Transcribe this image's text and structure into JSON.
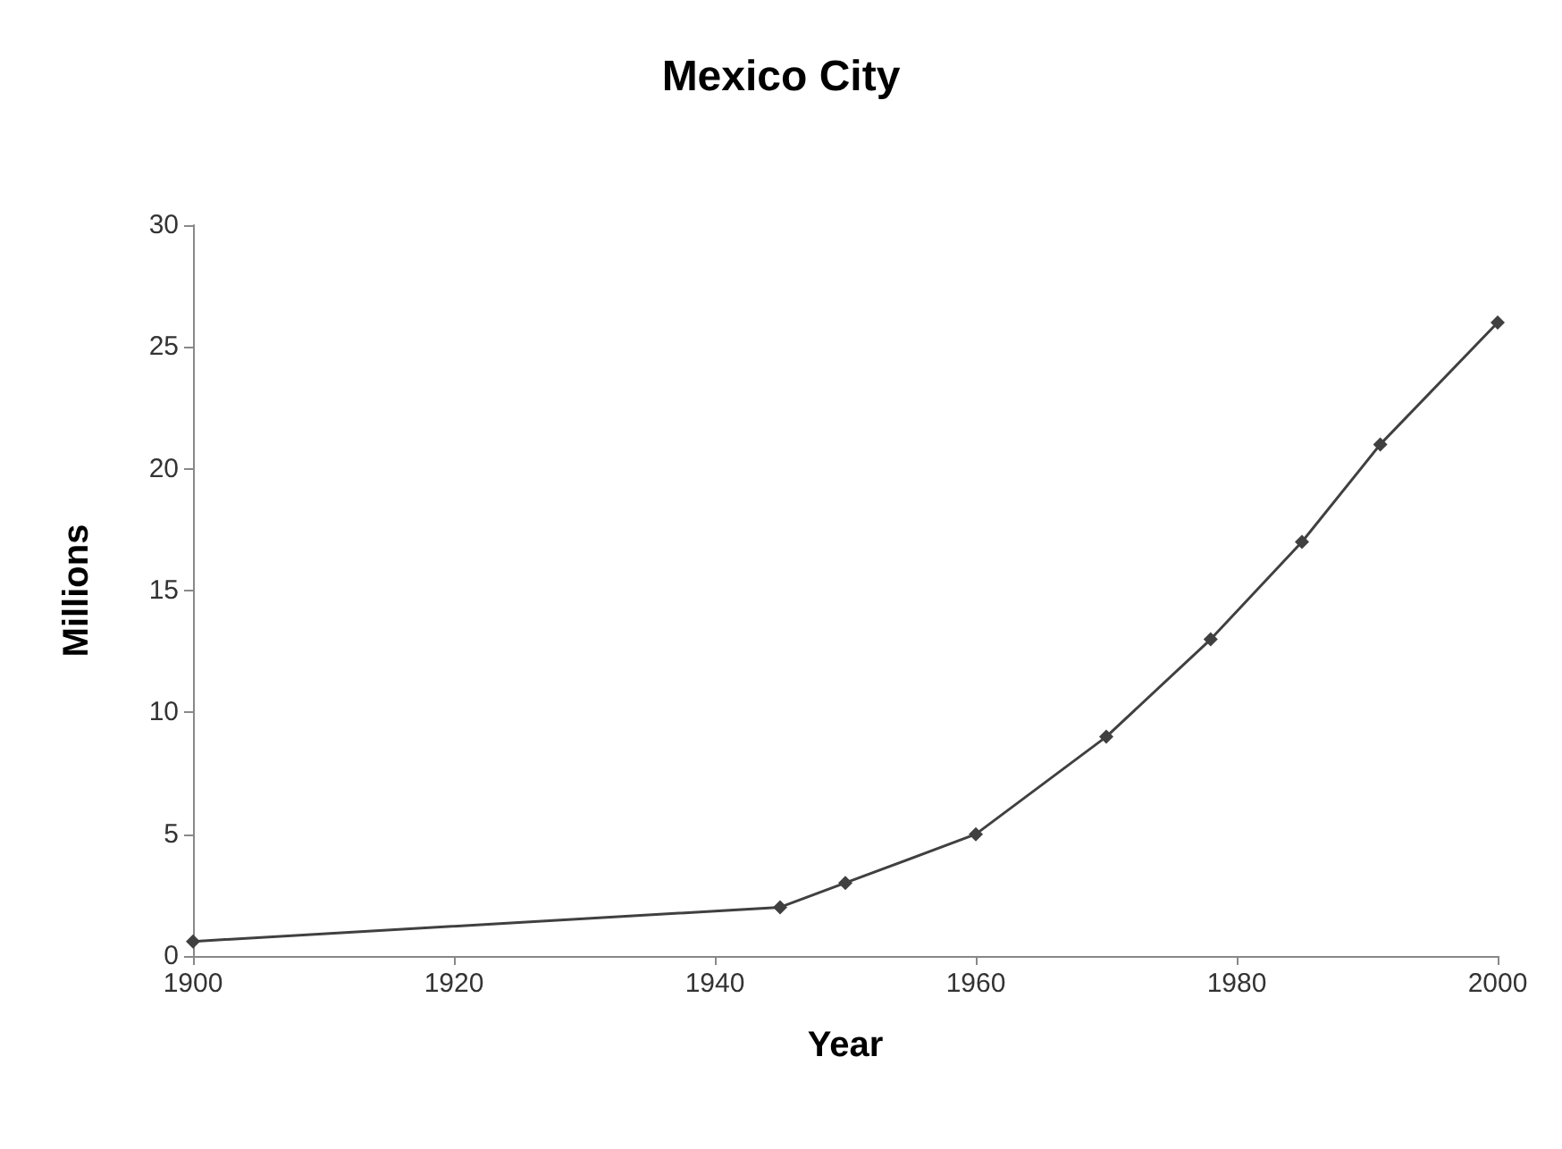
{
  "chart_data": {
    "type": "line",
    "title": "Mexico City",
    "xlabel": "Year",
    "ylabel": "Millions",
    "x": [
      1900,
      1945,
      1950,
      1960,
      1970,
      1978,
      1985,
      1991,
      2000
    ],
    "series": [
      {
        "color": "#404040",
        "values": [
          0.6,
          2,
          3,
          5,
          9,
          13,
          17,
          21,
          26
        ]
      }
    ],
    "xlim": [
      1900,
      2000
    ],
    "xticks": [
      1900,
      1920,
      1940,
      1960,
      1980,
      2000
    ],
    "ylim": [
      0,
      30
    ],
    "yticks": [
      0,
      5,
      10,
      15,
      20,
      25,
      30
    ],
    "grid": false,
    "marker": "diamond",
    "line_style": "solid"
  }
}
